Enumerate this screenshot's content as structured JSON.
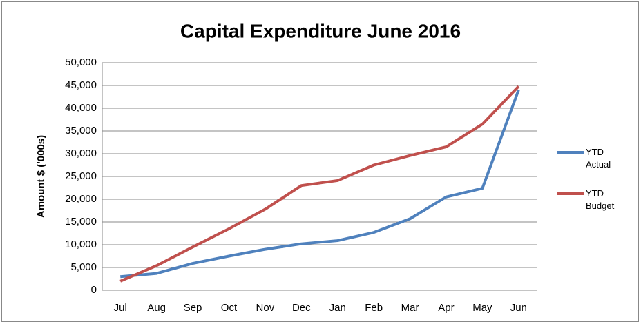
{
  "chart_data": {
    "type": "line",
    "title": "Capital Expenditure June 2016",
    "y_label": "Amount $ ('000s)",
    "categories": [
      "Jul",
      "Aug",
      "Sep",
      "Oct",
      "Nov",
      "Dec",
      "Jan",
      "Feb",
      "Mar",
      "Apr",
      "May",
      "Jun"
    ],
    "series": [
      {
        "name": "YTD Actual",
        "color": "#4f81bd",
        "values": [
          3000,
          3700,
          5900,
          7500,
          9000,
          10200,
          10900,
          12700,
          15700,
          20500,
          22400,
          44000
        ]
      },
      {
        "name": "YTD Budget",
        "color": "#c0504d",
        "values": [
          2000,
          5400,
          9500,
          13500,
          17800,
          23000,
          24100,
          27500,
          29600,
          31500,
          36500,
          44800
        ]
      }
    ],
    "ylim": [
      0,
      50000
    ],
    "yticks": [
      0,
      {
        "value": 5000,
        "label": "5,000"
      },
      {
        "value": 10000,
        "label": "10,000"
      },
      {
        "value": 15000,
        "label": "15,000"
      },
      {
        "value": 20000,
        "label": "20,000"
      },
      {
        "value": 25000,
        "label": "25,000"
      },
      {
        "value": 30000,
        "label": "30,000"
      },
      {
        "value": 35000,
        "label": "35,000"
      },
      {
        "value": 40000,
        "label": "40,000"
      },
      {
        "value": 45000,
        "label": "45,000"
      },
      {
        "value": 50000,
        "label": "50,000"
      }
    ],
    "grid": true,
    "legend": "right"
  }
}
